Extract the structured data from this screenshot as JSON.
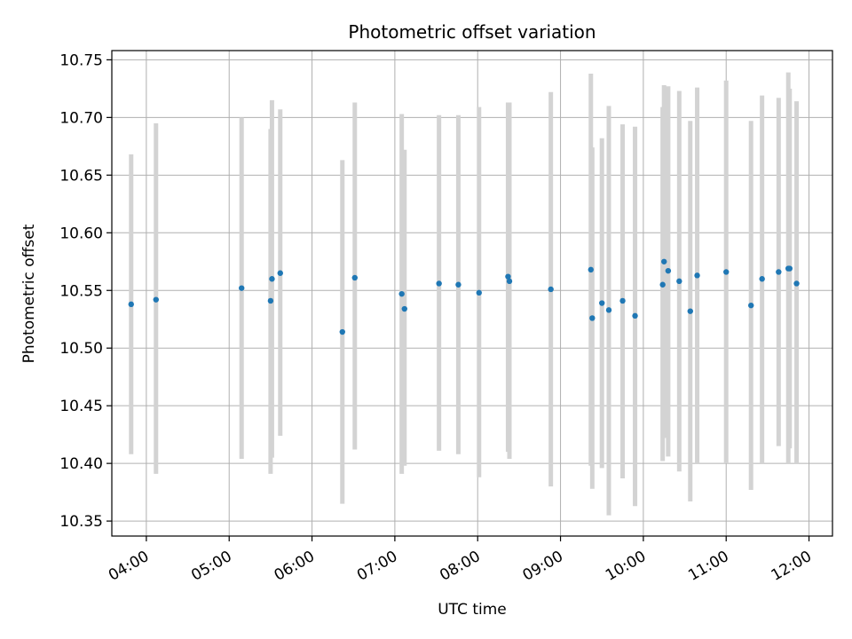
{
  "chart_data": {
    "type": "scatter",
    "title": "Photometric offset variation",
    "xlabel": "UTC time",
    "ylabel": "Photometric offset",
    "x_axis": "time",
    "xlim": [
      "03:35",
      "12:17"
    ],
    "ylim": [
      10.337,
      10.758
    ],
    "x_ticks": [
      "04:00",
      "05:00",
      "06:00",
      "07:00",
      "08:00",
      "09:00",
      "10:00",
      "11:00",
      "12:00"
    ],
    "y_ticks": [
      10.35,
      10.4,
      10.45,
      10.5,
      10.55,
      10.6,
      10.65,
      10.7,
      10.75
    ],
    "y_tick_labels": [
      "10.35",
      "10.40",
      "10.45",
      "10.50",
      "10.55",
      "10.60",
      "10.65",
      "10.70",
      "10.75"
    ],
    "grid": true,
    "colors": {
      "points": "#1f77b4",
      "error_bars": "#d3d3d3",
      "grid": "#b0b0b0"
    },
    "series": [
      {
        "points": [
          {
            "x": "03:49",
            "y": 10.538,
            "ylow": 10.408,
            "yhigh": 10.668
          },
          {
            "x": "04:07",
            "y": 10.542,
            "ylow": 10.391,
            "yhigh": 10.695
          },
          {
            "x": "05:09",
            "y": 10.552,
            "ylow": 10.404,
            "yhigh": 10.7
          },
          {
            "x": "05:30",
            "y": 10.541,
            "ylow": 10.391,
            "yhigh": 10.69
          },
          {
            "x": "05:31",
            "y": 10.56,
            "ylow": 10.405,
            "yhigh": 10.715
          },
          {
            "x": "05:37",
            "y": 10.565,
            "ylow": 10.424,
            "yhigh": 10.707
          },
          {
            "x": "06:22",
            "y": 10.514,
            "ylow": 10.365,
            "yhigh": 10.663
          },
          {
            "x": "06:31",
            "y": 10.561,
            "ylow": 10.412,
            "yhigh": 10.713
          },
          {
            "x": "07:05",
            "y": 10.547,
            "ylow": 10.391,
            "yhigh": 10.703
          },
          {
            "x": "07:07",
            "y": 10.534,
            "ylow": 10.398,
            "yhigh": 10.672
          },
          {
            "x": "07:32",
            "y": 10.556,
            "ylow": 10.411,
            "yhigh": 10.702
          },
          {
            "x": "07:46",
            "y": 10.555,
            "ylow": 10.408,
            "yhigh": 10.702
          },
          {
            "x": "08:01",
            "y": 10.548,
            "ylow": 10.388,
            "yhigh": 10.709
          },
          {
            "x": "08:22",
            "y": 10.562,
            "ylow": 10.41,
            "yhigh": 10.713
          },
          {
            "x": "08:23",
            "y": 10.558,
            "ylow": 10.404,
            "yhigh": 10.713
          },
          {
            "x": "08:53",
            "y": 10.551,
            "ylow": 10.38,
            "yhigh": 10.722
          },
          {
            "x": "09:22",
            "y": 10.568,
            "ylow": 10.398,
            "yhigh": 10.738
          },
          {
            "x": "09:23",
            "y": 10.526,
            "ylow": 10.378,
            "yhigh": 10.674
          },
          {
            "x": "09:30",
            "y": 10.539,
            "ylow": 10.396,
            "yhigh": 10.682
          },
          {
            "x": "09:35",
            "y": 10.533,
            "ylow": 10.355,
            "yhigh": 10.71
          },
          {
            "x": "09:45",
            "y": 10.541,
            "ylow": 10.387,
            "yhigh": 10.694
          },
          {
            "x": "09:54",
            "y": 10.528,
            "ylow": 10.363,
            "yhigh": 10.692
          },
          {
            "x": "10:14",
            "y": 10.555,
            "ylow": 10.402,
            "yhigh": 10.709
          },
          {
            "x": "10:15",
            "y": 10.575,
            "ylow": 10.422,
            "yhigh": 10.728
          },
          {
            "x": "10:18",
            "y": 10.567,
            "ylow": 10.406,
            "yhigh": 10.727
          },
          {
            "x": "10:26",
            "y": 10.558,
            "ylow": 10.393,
            "yhigh": 10.723
          },
          {
            "x": "10:34",
            "y": 10.532,
            "ylow": 10.367,
            "yhigh": 10.697
          },
          {
            "x": "10:39",
            "y": 10.563,
            "ylow": 10.4,
            "yhigh": 10.726
          },
          {
            "x": "11:00",
            "y": 10.566,
            "ylow": 10.4,
            "yhigh": 10.732
          },
          {
            "x": "11:18",
            "y": 10.537,
            "ylow": 10.377,
            "yhigh": 10.697
          },
          {
            "x": "11:26",
            "y": 10.56,
            "ylow": 10.4,
            "yhigh": 10.719
          },
          {
            "x": "11:38",
            "y": 10.566,
            "ylow": 10.415,
            "yhigh": 10.717
          },
          {
            "x": "11:45",
            "y": 10.569,
            "ylow": 10.4,
            "yhigh": 10.739
          },
          {
            "x": "11:46",
            "y": 10.569,
            "ylow": 10.413,
            "yhigh": 10.725
          },
          {
            "x": "11:51",
            "y": 10.556,
            "ylow": 10.4,
            "yhigh": 10.714
          }
        ]
      }
    ]
  }
}
